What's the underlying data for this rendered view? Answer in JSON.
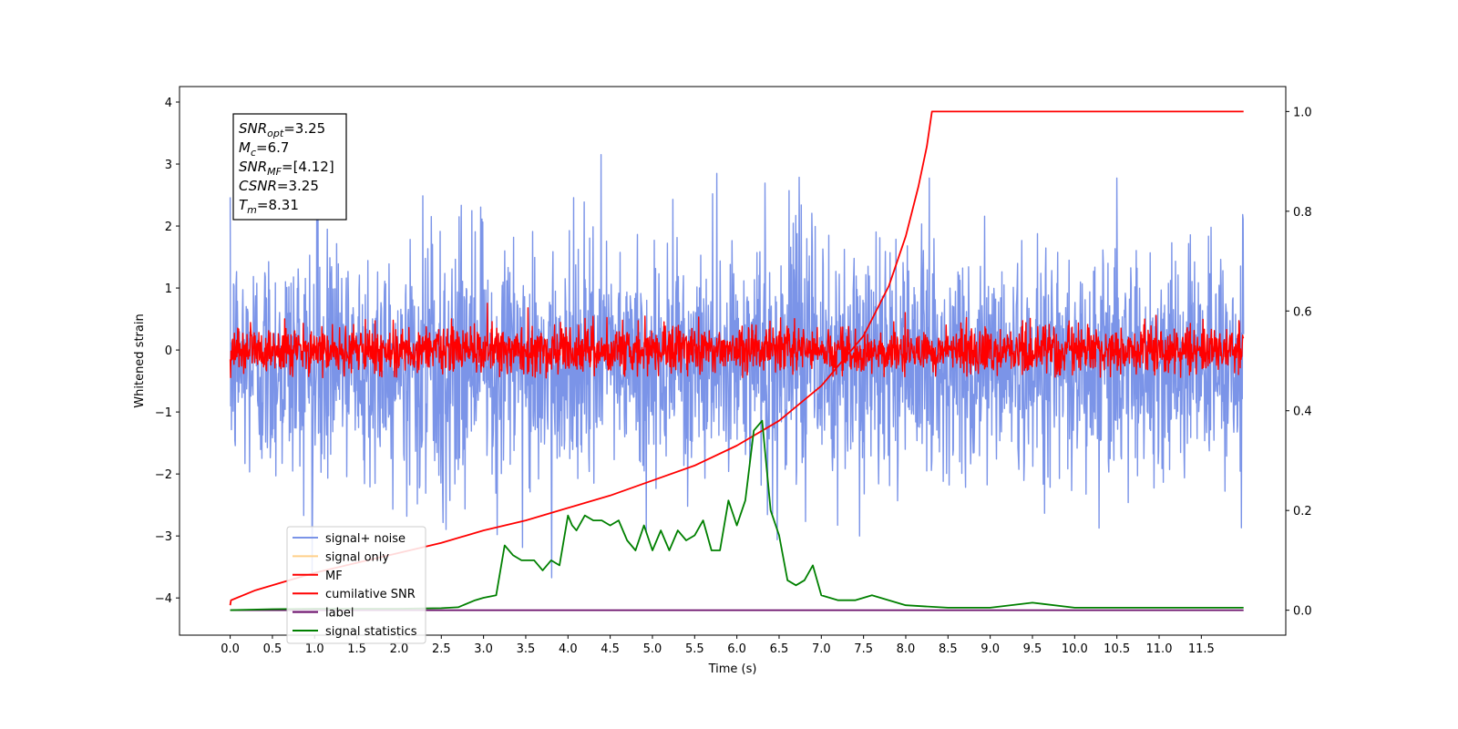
{
  "chart_data": {
    "type": "line",
    "xlabel": "Time (s)",
    "ylabel": "Whitened strain",
    "xlim": [
      -0.6,
      12.5
    ],
    "ylim": [
      -4.6,
      4.25
    ],
    "y2lim": [
      -0.05,
      1.05
    ],
    "x_ticks": [
      "0.0",
      "0.5",
      "1.0",
      "1.5",
      "2.0",
      "2.5",
      "3.0",
      "3.5",
      "4.0",
      "4.5",
      "5.0",
      "5.5",
      "6.0",
      "6.5",
      "7.0",
      "7.5",
      "8.0",
      "8.5",
      "9.0",
      "9.5",
      "10.0",
      "10.5",
      "11.0",
      "11.5"
    ],
    "y_ticks": [
      "−4",
      "−3",
      "−2",
      "−1",
      "0",
      "1",
      "2",
      "3",
      "4"
    ],
    "y2_ticks": [
      "0.0",
      "0.2",
      "0.4",
      "0.6",
      "0.8",
      "1.0"
    ],
    "grid": false,
    "legend_position": "lower-left",
    "annotation": {
      "lines": [
        {
          "sym": "SNR",
          "sub": "opt",
          "val": "=3.25"
        },
        {
          "sym": "M",
          "sub": "c",
          "val": "=6.7"
        },
        {
          "sym": "SNR",
          "sub": "MF",
          "val": "=[4.12]"
        },
        {
          "sym": "CSNR",
          "sub": "",
          "val": "=3.25"
        },
        {
          "sym": "T",
          "sub": "m",
          "val": "=8.31"
        }
      ]
    },
    "series": [
      {
        "name": "signal+ noise",
        "color": "#7b94e8",
        "axis": "left",
        "style": "noise",
        "x_range": [
          0,
          12
        ],
        "mean": -0.2,
        "amplitude": 1.2,
        "peak_max": 3.5,
        "peak_min": -3.9
      },
      {
        "name": "signal only",
        "color": "#ffd08a",
        "axis": "left",
        "style": "hidden"
      },
      {
        "name": "MF",
        "color": "#ff0000",
        "axis": "left",
        "style": "noise",
        "x_range": [
          0,
          12
        ],
        "mean": 0.0,
        "amplitude": 0.25,
        "peak_max": 1.0,
        "peak_min": -0.45
      },
      {
        "name": "cumilative SNR",
        "color": "#ff0000",
        "axis": "right",
        "x": [
          0,
          0.01,
          0.3,
          0.7,
          1.0,
          1.5,
          2.0,
          2.5,
          3.0,
          3.5,
          4.0,
          4.5,
          5.0,
          5.5,
          6.0,
          6.5,
          7.0,
          7.5,
          7.8,
          8.0,
          8.15,
          8.25,
          8.31,
          8.5,
          9.0,
          10.0,
          11.0,
          12.0
        ],
        "values": [
          0.01,
          0.02,
          0.04,
          0.06,
          0.075,
          0.095,
          0.115,
          0.135,
          0.16,
          0.18,
          0.205,
          0.23,
          0.26,
          0.29,
          0.33,
          0.38,
          0.45,
          0.55,
          0.65,
          0.75,
          0.85,
          0.93,
          1.0,
          1.0,
          1.0,
          1.0,
          1.0,
          1.0
        ]
      },
      {
        "name": "label",
        "color": "#6a0d6a",
        "axis": "right",
        "x": [
          0,
          12
        ],
        "values": [
          0.0,
          0.0
        ]
      },
      {
        "name": "signal statistics",
        "color": "#008000",
        "axis": "right",
        "x": [
          0,
          0.5,
          1.0,
          1.5,
          2.0,
          2.5,
          2.7,
          2.9,
          3.0,
          3.15,
          3.25,
          3.35,
          3.45,
          3.6,
          3.7,
          3.8,
          3.9,
          4.0,
          4.05,
          4.1,
          4.2,
          4.3,
          4.4,
          4.5,
          4.6,
          4.7,
          4.8,
          4.9,
          5.0,
          5.1,
          5.2,
          5.3,
          5.4,
          5.5,
          5.6,
          5.7,
          5.8,
          5.9,
          6.0,
          6.1,
          6.2,
          6.3,
          6.4,
          6.5,
          6.6,
          6.7,
          6.8,
          6.9,
          7.0,
          7.2,
          7.4,
          7.6,
          7.8,
          8.0,
          8.5,
          9.0,
          9.5,
          10.0,
          10.5,
          11.0,
          11.5,
          12.0
        ],
        "values": [
          0.0,
          0.002,
          0.003,
          0.003,
          0.003,
          0.004,
          0.006,
          0.02,
          0.025,
          0.03,
          0.13,
          0.11,
          0.1,
          0.1,
          0.08,
          0.1,
          0.09,
          0.19,
          0.17,
          0.16,
          0.19,
          0.18,
          0.18,
          0.17,
          0.18,
          0.14,
          0.12,
          0.17,
          0.12,
          0.16,
          0.12,
          0.16,
          0.14,
          0.15,
          0.18,
          0.12,
          0.12,
          0.22,
          0.17,
          0.22,
          0.36,
          0.38,
          0.2,
          0.15,
          0.06,
          0.05,
          0.06,
          0.09,
          0.03,
          0.02,
          0.02,
          0.03,
          0.02,
          0.01,
          0.005,
          0.005,
          0.015,
          0.005,
          0.005,
          0.005,
          0.005,
          0.005
        ]
      }
    ]
  }
}
